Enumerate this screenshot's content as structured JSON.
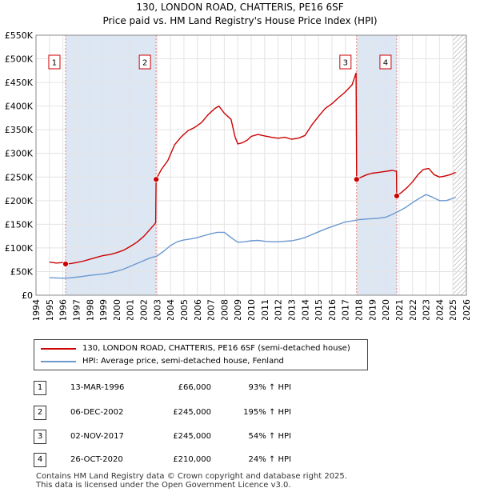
{
  "title": "130, LONDON ROAD, CHATTERIS, PE16 6SF",
  "subtitle": "Price paid vs. HM Land Registry's House Price Index (HPI)",
  "colors": {
    "property": "#cc0000",
    "hpi": "#6b98cf",
    "shade": "#dde6f3",
    "marker_line": "#e08080"
  },
  "chart_data": {
    "type": "line",
    "xlim": [
      1994,
      2026
    ],
    "ylim": [
      0,
      550000
    ],
    "yticks": [
      0,
      50000,
      100000,
      150000,
      200000,
      250000,
      300000,
      350000,
      400000,
      450000,
      500000,
      550000
    ],
    "ytick_labels": [
      "£0",
      "£50K",
      "£100K",
      "£150K",
      "£200K",
      "£250K",
      "£300K",
      "£350K",
      "£400K",
      "£450K",
      "£500K",
      "£550K"
    ],
    "xticks": [
      1994,
      1995,
      1996,
      1997,
      1998,
      1999,
      2000,
      2001,
      2002,
      2003,
      2004,
      2005,
      2006,
      2007,
      2008,
      2009,
      2010,
      2011,
      2012,
      2013,
      2014,
      2015,
      2016,
      2017,
      2018,
      2019,
      2020,
      2021,
      2022,
      2023,
      2024,
      2025,
      2026
    ],
    "shaded_ranges": [
      [
        1996.2,
        2002.93
      ],
      [
        2017.84,
        2020.82
      ]
    ],
    "hatched_from": 2025.0,
    "series": [
      {
        "name": "130, LONDON ROAD, CHATTERIS, PE16 6SF (semi-detached house)",
        "x": [
          1995.0,
          1995.5,
          1996.0,
          1996.2,
          1996.6,
          1997.0,
          1997.5,
          1998.0,
          1998.5,
          1999.0,
          1999.5,
          2000.0,
          2000.5,
          2001.0,
          2001.5,
          2002.0,
          2002.5,
          2002.9,
          2002.93,
          2003.3,
          2003.8,
          2004.3,
          2004.8,
          2005.3,
          2005.8,
          2006.3,
          2006.8,
          2007.3,
          2007.6,
          2008.0,
          2008.5,
          2008.8,
          2009.0,
          2009.3,
          2009.7,
          2010.0,
          2010.5,
          2011.0,
          2011.5,
          2012.0,
          2012.5,
          2013.0,
          2013.5,
          2014.0,
          2014.5,
          2015.0,
          2015.5,
          2016.0,
          2016.5,
          2017.0,
          2017.5,
          2017.8,
          2017.84,
          2018.2,
          2018.6,
          2019.0,
          2019.5,
          2020.0,
          2020.5,
          2020.8,
          2020.82,
          2021.2,
          2021.6,
          2022.0,
          2022.4,
          2022.8,
          2023.2,
          2023.6,
          2024.0,
          2024.4,
          2024.8,
          2025.2
        ],
        "values": [
          70000,
          68000,
          69000,
          66000,
          67000,
          69000,
          72000,
          76000,
          80000,
          84000,
          86000,
          90000,
          95000,
          103000,
          112000,
          124000,
          140000,
          153000,
          245000,
          265000,
          285000,
          318000,
          335000,
          348000,
          355000,
          365000,
          382000,
          395000,
          400000,
          385000,
          372000,
          335000,
          320000,
          322000,
          328000,
          336000,
          340000,
          337000,
          334000,
          332000,
          334000,
          330000,
          332000,
          338000,
          360000,
          378000,
          395000,
          405000,
          418000,
          430000,
          445000,
          470000,
          245000,
          250000,
          255000,
          258000,
          260000,
          262000,
          264000,
          262000,
          210000,
          218000,
          228000,
          240000,
          255000,
          266000,
          268000,
          255000,
          250000,
          252000,
          255000,
          260000
        ]
      },
      {
        "name": "HPI: Average price, semi-detached house, Fenland",
        "x": [
          1995.0,
          1995.5,
          1996.0,
          1996.5,
          1997.0,
          1997.5,
          1998.0,
          1998.5,
          1999.0,
          1999.5,
          2000.0,
          2000.5,
          2001.0,
          2001.5,
          2002.0,
          2002.5,
          2003.0,
          2003.5,
          2004.0,
          2004.5,
          2005.0,
          2005.5,
          2006.0,
          2006.5,
          2007.0,
          2007.5,
          2008.0,
          2008.5,
          2009.0,
          2009.5,
          2010.0,
          2010.5,
          2011.0,
          2011.5,
          2012.0,
          2012.5,
          2013.0,
          2013.5,
          2014.0,
          2014.5,
          2015.0,
          2015.5,
          2016.0,
          2016.5,
          2017.0,
          2017.5,
          2018.0,
          2018.5,
          2019.0,
          2019.5,
          2020.0,
          2020.5,
          2021.0,
          2021.5,
          2022.0,
          2022.5,
          2023.0,
          2023.5,
          2024.0,
          2024.5,
          2025.0,
          2025.2
        ],
        "values": [
          37000,
          36500,
          36000,
          36500,
          38000,
          40000,
          42000,
          43500,
          45000,
          47500,
          51000,
          55000,
          61000,
          67000,
          73000,
          79000,
          83000,
          93000,
          105000,
          113000,
          117000,
          119000,
          122000,
          126000,
          130000,
          133000,
          133000,
          122000,
          112000,
          113000,
          115000,
          116000,
          114000,
          113000,
          113000,
          114000,
          115000,
          118000,
          122000,
          128000,
          134000,
          140000,
          145000,
          150000,
          155000,
          157000,
          160000,
          161000,
          162000,
          163000,
          165000,
          171000,
          178000,
          186000,
          196000,
          205000,
          213000,
          207000,
          200000,
          200000,
          205000,
          207000
        ]
      }
    ],
    "sales": [
      {
        "id": "1",
        "x": 1996.2,
        "price": 66000
      },
      {
        "id": "2",
        "x": 2002.93,
        "price": 245000
      },
      {
        "id": "3",
        "x": 2017.84,
        "price": 245000
      },
      {
        "id": "4",
        "x": 2020.82,
        "price": 210000
      }
    ]
  },
  "legend": {
    "property_label": "130, LONDON ROAD, CHATTERIS, PE16 6SF (semi-detached house)",
    "hpi_label": "HPI: Average price, semi-detached house, Fenland"
  },
  "transactions": [
    {
      "num": "1",
      "date": "13-MAR-1996",
      "price": "£66,000",
      "hpi": "93% ↑ HPI"
    },
    {
      "num": "2",
      "date": "06-DEC-2002",
      "price": "£245,000",
      "hpi": "195% ↑ HPI"
    },
    {
      "num": "3",
      "date": "02-NOV-2017",
      "price": "£245,000",
      "hpi": "54% ↑ HPI"
    },
    {
      "num": "4",
      "date": "26-OCT-2020",
      "price": "£210,000",
      "hpi": "24% ↑ HPI"
    }
  ],
  "footer": {
    "line1": "Contains HM Land Registry data © Crown copyright and database right 2025.",
    "line2": "This data is licensed under the Open Government Licence v3.0."
  }
}
